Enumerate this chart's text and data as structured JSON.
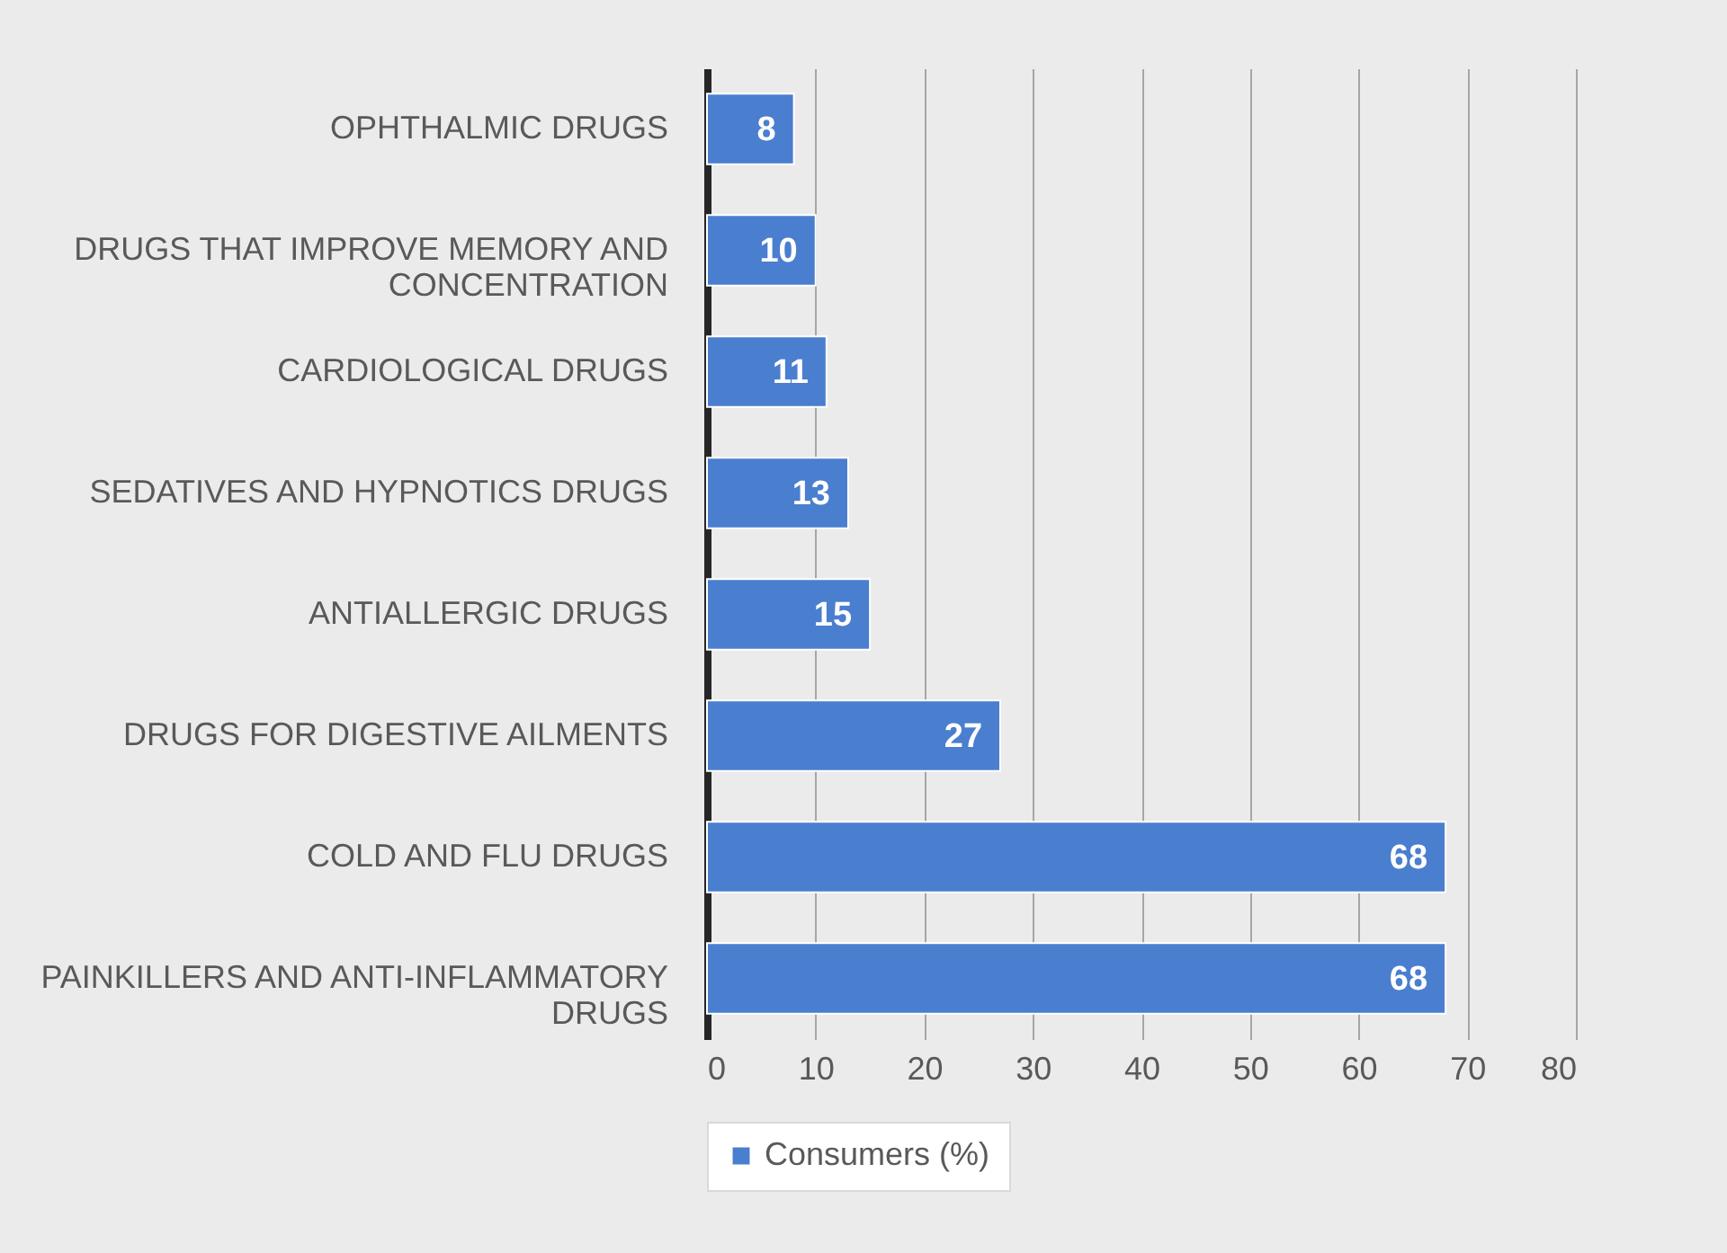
{
  "chart_data": {
    "type": "bar",
    "orientation": "horizontal",
    "categories": [
      "OPHTHALMIC DRUGS",
      "DRUGS THAT IMPROVE MEMORY AND CONCENTRATION",
      "CARDIOLOGICAL DRUGS",
      "SEDATIVES AND HYPNOTICS DRUGS",
      "ANTIALLERGIC DRUGS",
      "DRUGS FOR DIGESTIVE AILMENTS",
      "COLD AND FLU DRUGS",
      "PAINKILLERS AND ANTI-INFLAMMATORY DRUGS"
    ],
    "series": [
      {
        "name": "Consumers (%)",
        "color": "#4a7ecf",
        "values": [
          8,
          10,
          11,
          13,
          15,
          27,
          68,
          68
        ]
      }
    ],
    "xlim": [
      0,
      80
    ],
    "xticks": [
      0,
      10,
      20,
      30,
      40,
      50,
      60,
      70,
      80
    ],
    "grid": "x",
    "legend": "bottom",
    "data_labels": true
  }
}
